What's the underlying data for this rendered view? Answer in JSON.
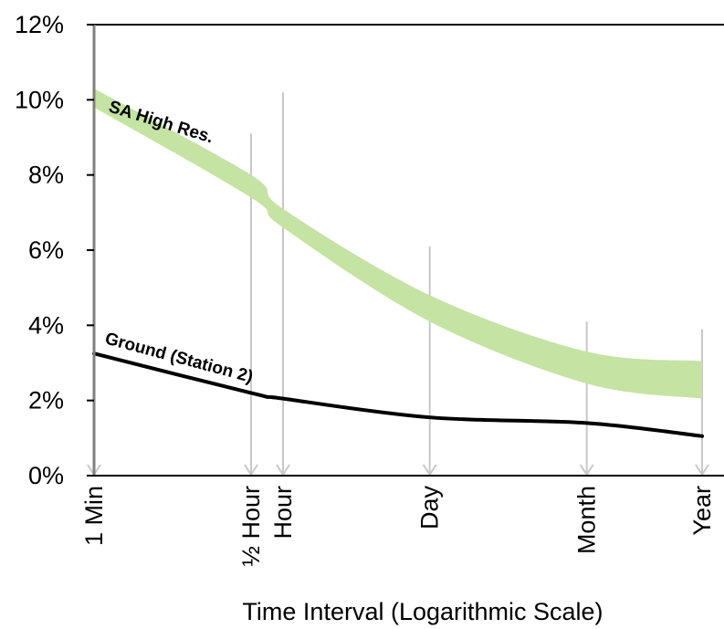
{
  "chart_data": {
    "type": "line",
    "xlabel": "Time Interval (Logarithmic Scale)",
    "ylabel": "",
    "x_scale": "log",
    "ylim": [
      0,
      12
    ],
    "y_ticks": [
      0,
      2,
      4,
      6,
      8,
      10,
      12
    ],
    "y_tick_labels": [
      "0%",
      "2%",
      "4%",
      "6%",
      "8%",
      "10%",
      "12%"
    ],
    "grid": false,
    "x_tick_labels": [
      "1 Min",
      "½ Hour",
      "Hour",
      "Day",
      "Month",
      "Year"
    ],
    "x_minutes": [
      1,
      30,
      60,
      1440,
      43200,
      525600
    ],
    "series": [
      {
        "name": "SA High Res.",
        "style": "band",
        "color": "#c5e3a3",
        "upper": [
          10.3,
          8.0,
          7.1,
          4.8,
          3.3,
          3.05
        ],
        "lower": [
          9.8,
          7.4,
          6.6,
          4.1,
          2.45,
          2.05
        ]
      },
      {
        "name": "Ground (Station 2)",
        "style": "line",
        "color": "#000000",
        "values": [
          3.25,
          2.2,
          2.05,
          1.55,
          1.4,
          1.05
        ]
      }
    ],
    "colors": {
      "axis": "#000000",
      "drop_lines": "#c8c8c8",
      "axis_rule": "#808080"
    }
  }
}
